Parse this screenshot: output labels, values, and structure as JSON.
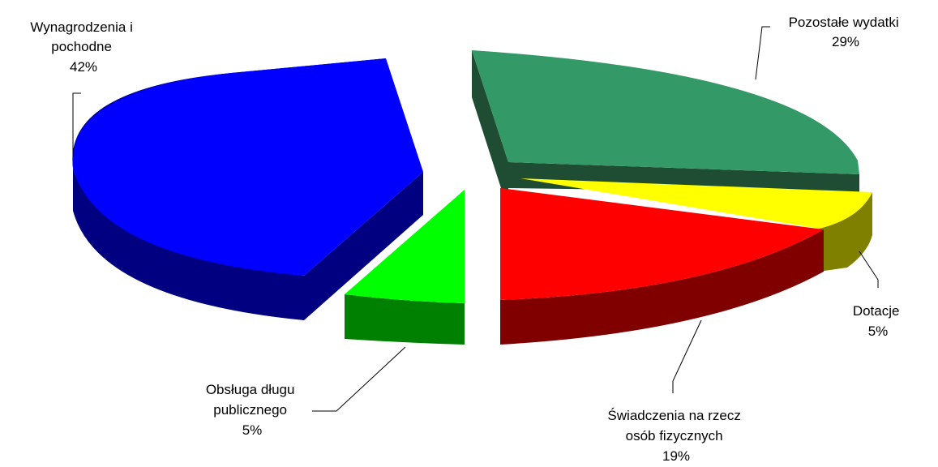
{
  "chart_data": {
    "type": "pie",
    "style": "3d-exploded",
    "slices": [
      {
        "name": "Wynagrodzenia i pochodne",
        "value": 42,
        "label_lines": [
          "Wynagrodzenia i",
          "pochodne",
          "42%"
        ],
        "color": "#0000FF",
        "side_color": "#000080"
      },
      {
        "name": "Pozostałe wydatki",
        "value": 29,
        "label_lines": [
          "Pozostałe wydatki",
          "29%"
        ],
        "color": "#339966",
        "side_color": "#1F4D33"
      },
      {
        "name": "Dotacje",
        "value": 5,
        "label_lines": [
          "Dotacje",
          "5%"
        ],
        "color": "#FFFF00",
        "side_color": "#808000"
      },
      {
        "name": "Świadczenia na rzecz osób fizycznych",
        "value": 19,
        "label_lines": [
          "Świadczenia na rzecz",
          "osób fizycznych",
          "19%"
        ],
        "color": "#FF0000",
        "side_color": "#800000"
      },
      {
        "name": "Obsługa długu publicznego",
        "value": 5,
        "label_lines": [
          "Obsługa długu",
          "publicznego",
          "5%"
        ],
        "color": "#00FF00",
        "side_color": "#008000"
      }
    ],
    "legend": "none"
  }
}
